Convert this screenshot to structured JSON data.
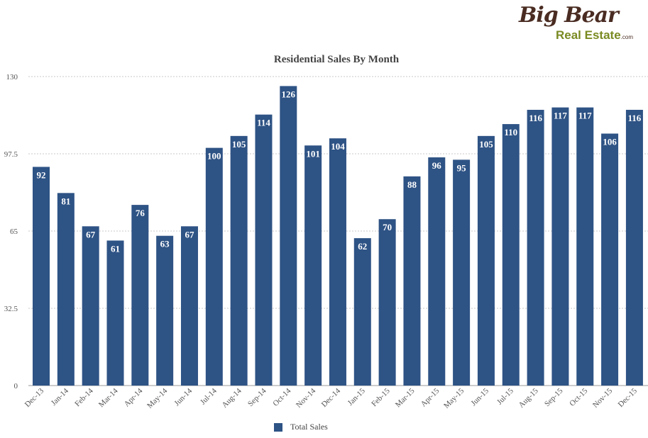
{
  "logo": {
    "top": "Big Bear",
    "bottom": "Real Estate",
    "suffix": ".com"
  },
  "chart_data": {
    "type": "bar",
    "title": "Residential Sales By Month",
    "xlabel": "",
    "ylabel": "",
    "ylim": [
      0,
      130
    ],
    "yticks": [
      0,
      32.5,
      65,
      97.5,
      130
    ],
    "ytick_labels": [
      "0",
      "32.5",
      "65",
      "97.5",
      "130"
    ],
    "grid": true,
    "legend_position": "bottom",
    "categories": [
      "Dec-13",
      "Jan-14",
      "Feb-14",
      "Mar-14",
      "Apr-14",
      "May-14",
      "Jun-14",
      "Jul-14",
      "Aug-14",
      "Sep-14",
      "Oct-14",
      "Nov-14",
      "Dec-14",
      "Jan-15",
      "Feb-15",
      "Mar-15",
      "Apr-15",
      "May-15",
      "Jun-15",
      "Jul-15",
      "Aug-15",
      "Sep-15",
      "Oct-15",
      "Nov-15",
      "Dec-15"
    ],
    "series": [
      {
        "name": "Total Sales",
        "color": "#2e5385",
        "values": [
          92,
          81,
          67,
          61,
          76,
          63,
          67,
          100,
          105,
          114,
          126,
          101,
          104,
          62,
          70,
          88,
          96,
          95,
          105,
          110,
          116,
          117,
          117,
          106,
          116
        ]
      }
    ]
  }
}
